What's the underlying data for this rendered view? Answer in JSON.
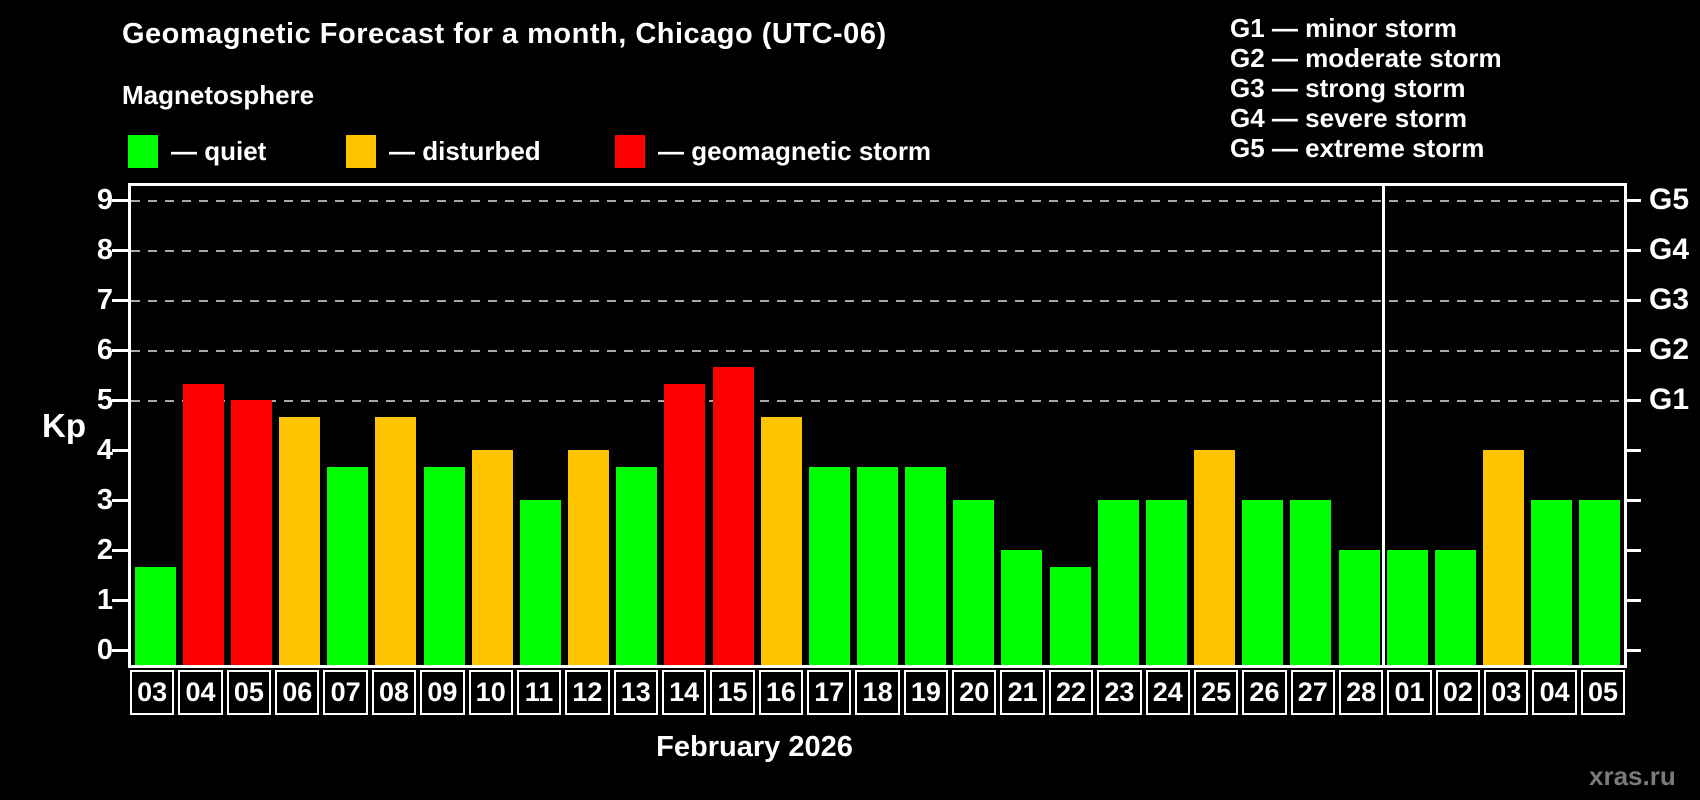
{
  "header": {
    "title": "Geomagnetic Forecast for a month, Chicago (UTC-06)",
    "subtitle": "Magnetosphere"
  },
  "legend": {
    "items": [
      {
        "label": "— quiet",
        "status": "quiet"
      },
      {
        "label": "— disturbed",
        "status": "disturbed"
      },
      {
        "label": "— geomagnetic storm",
        "status": "storm"
      }
    ]
  },
  "g_scale_legend": [
    "G1 — minor storm",
    "G2 — moderate storm",
    "G3 — strong storm",
    "G4 — severe storm",
    "G5 — extreme storm"
  ],
  "colors": {
    "quiet": "#00ff00",
    "disturbed": "#ffc400",
    "storm": "#ff0000",
    "background": "#000000",
    "axis": "#ffffff",
    "grid": "#a8a8a8",
    "watermark": "#7a7a7a"
  },
  "chart_data": {
    "type": "bar",
    "title": "Geomagnetic Forecast for a month, Chicago (UTC-06)",
    "ylabel": "Kp",
    "xlabel": "February 2026",
    "ylim": [
      0,
      9
    ],
    "yticks": [
      0,
      1,
      2,
      3,
      4,
      5,
      6,
      7,
      8,
      9
    ],
    "grid_levels": [
      5,
      6,
      7,
      8,
      9
    ],
    "grid_on": true,
    "legend_position": "top-left",
    "right_axis": [
      {
        "label": "G1",
        "kp": 5
      },
      {
        "label": "G2",
        "kp": 6
      },
      {
        "label": "G3",
        "kp": 7
      },
      {
        "label": "G4",
        "kp": 8
      },
      {
        "label": "G5",
        "kp": 9
      }
    ],
    "categories": [
      "03",
      "04",
      "05",
      "06",
      "07",
      "08",
      "09",
      "10",
      "11",
      "12",
      "13",
      "14",
      "15",
      "16",
      "17",
      "18",
      "19",
      "20",
      "21",
      "22",
      "23",
      "24",
      "25",
      "26",
      "27",
      "28",
      "01",
      "02",
      "03",
      "04",
      "05"
    ],
    "values": [
      1.67,
      5.33,
      5.0,
      4.67,
      3.67,
      4.67,
      3.67,
      4.0,
      3.0,
      4.0,
      3.67,
      5.33,
      5.67,
      4.67,
      3.67,
      3.67,
      3.67,
      3.0,
      2.0,
      1.67,
      3.0,
      3.0,
      4.0,
      3.0,
      3.0,
      2.0,
      2.0,
      2.0,
      4.0,
      3.0,
      3.0
    ],
    "statuses": [
      "quiet",
      "storm",
      "storm",
      "disturbed",
      "quiet",
      "disturbed",
      "quiet",
      "disturbed",
      "quiet",
      "disturbed",
      "quiet",
      "storm",
      "storm",
      "disturbed",
      "quiet",
      "quiet",
      "quiet",
      "quiet",
      "quiet",
      "quiet",
      "quiet",
      "quiet",
      "disturbed",
      "quiet",
      "quiet",
      "quiet",
      "quiet",
      "quiet",
      "disturbed",
      "quiet",
      "quiet"
    ],
    "month_separator_after_index": 25
  },
  "footer": {
    "month_label": "February 2026",
    "watermark": "xras.ru"
  }
}
